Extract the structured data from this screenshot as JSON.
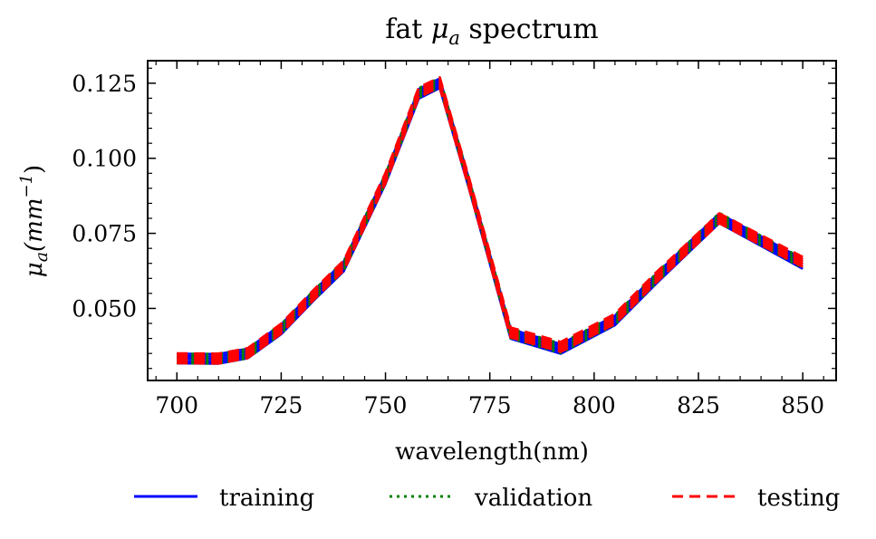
{
  "chart_data": {
    "type": "line",
    "title_prefix": "fat ",
    "title_symbol": "μ",
    "title_subscript": "a",
    "title_suffix": " spectrum",
    "xlabel": "wavelength(nm)",
    "ylabel_symbol": "μ",
    "ylabel_subscript": "a",
    "ylabel_units_prefix": "(mm",
    "ylabel_units_exponent": "−1",
    "ylabel_units_suffix": ")",
    "xlim": [
      693,
      858
    ],
    "ylim": [
      0.026,
      0.1325
    ],
    "x_ticks": [
      700,
      725,
      750,
      775,
      800,
      825,
      850
    ],
    "y_ticks": [
      0.05,
      0.075,
      0.1,
      0.125
    ],
    "x_tick_labels": [
      "700",
      "725",
      "750",
      "775",
      "800",
      "825",
      "850"
    ],
    "y_tick_labels": [
      "0.050",
      "0.075",
      "0.100",
      "0.125"
    ],
    "grid": false,
    "legend_position": "bottom",
    "x": [
      700,
      710,
      717,
      725,
      733,
      740,
      750,
      758,
      763,
      770,
      780,
      792,
      805,
      815,
      830,
      850
    ],
    "series": [
      {
        "name": "training",
        "color": "#0000ff",
        "style": "solid",
        "values": [
          0.0333,
          0.0332,
          0.035,
          0.043,
          0.0545,
          0.064,
          0.093,
          0.1215,
          0.125,
          0.0915,
          0.0415,
          0.0365,
          0.046,
          0.06,
          0.08,
          0.0648
        ]
      },
      {
        "name": "validation",
        "color": "#008000",
        "style": "dotted",
        "values": [
          0.0333,
          0.0332,
          0.035,
          0.0432,
          0.0547,
          0.0642,
          0.0932,
          0.1218,
          0.1252,
          0.0917,
          0.0417,
          0.0367,
          0.0462,
          0.0602,
          0.0802,
          0.065
        ]
      },
      {
        "name": "testing",
        "color": "#ff0000",
        "style": "dashed",
        "values": [
          0.0334,
          0.0333,
          0.0351,
          0.0433,
          0.0548,
          0.0643,
          0.0934,
          0.122,
          0.1253,
          0.0918,
          0.042,
          0.0372,
          0.0465,
          0.0605,
          0.08,
          0.0655
        ]
      }
    ]
  }
}
